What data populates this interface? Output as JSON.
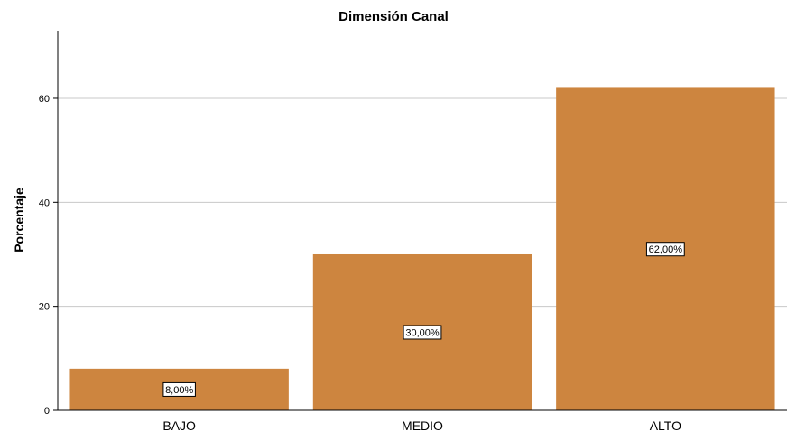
{
  "chart_data": {
    "type": "bar",
    "title": "Dimensión Canal",
    "xlabel": "",
    "ylabel": "Porcentaje",
    "categories": [
      "BAJO",
      "MEDIO",
      "ALTO"
    ],
    "values": [
      8,
      30,
      62
    ],
    "data_labels": [
      "8,00%",
      "30,00%",
      "62,00%"
    ],
    "yticks": [
      0,
      20,
      40,
      60
    ],
    "ylim": [
      0,
      73
    ],
    "grid": true,
    "bar_color": "#cd853f"
  }
}
